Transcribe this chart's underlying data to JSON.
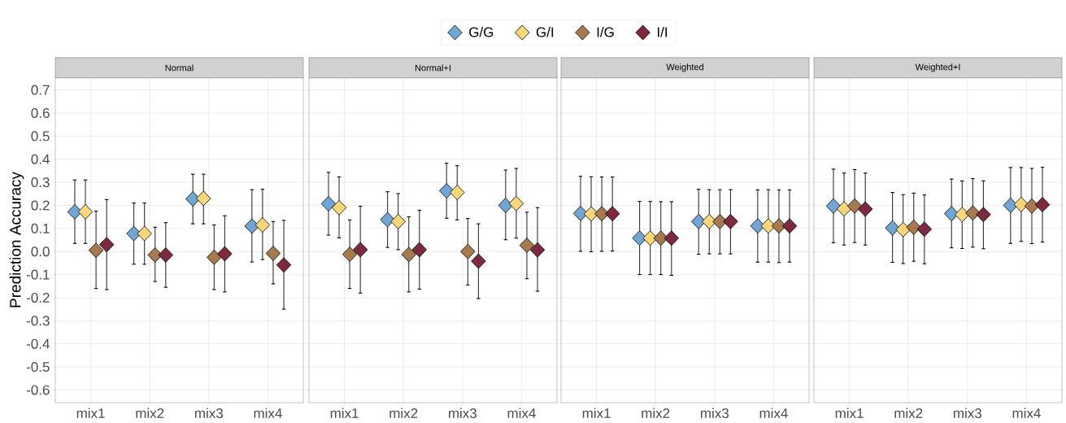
{
  "chart_data": [
    {
      "type": "scatter",
      "title": "Normal",
      "ylabel": "Prediction Accuracy",
      "categories": [
        "mix1",
        "mix2",
        "mix3",
        "mix4"
      ],
      "marker": "diamond",
      "grid": true,
      "legend": "top",
      "ylim": [
        -0.655,
        0.755
      ],
      "yticks": [
        {
          "value": -0.6,
          "label": "-0.6"
        },
        {
          "value": -0.5,
          "label": "-0.5"
        },
        {
          "value": -0.4,
          "label": "-0.4"
        },
        {
          "value": -0.3,
          "label": "-0.3"
        },
        {
          "value": -0.2,
          "label": "-0.2"
        },
        {
          "value": -0.1,
          "label": "-0.1"
        },
        {
          "value": 0,
          "label": "0.0"
        },
        {
          "value": 0.1,
          "label": "0.1"
        },
        {
          "value": 0.2,
          "label": "0.2"
        },
        {
          "value": 0.3,
          "label": "0.3"
        },
        {
          "value": 0.4,
          "label": "0.4"
        },
        {
          "value": 0.5,
          "label": "0.5"
        },
        {
          "value": 0.6,
          "label": "0.6"
        },
        {
          "value": 0.7,
          "label": "0.7"
        }
      ],
      "series": [
        {
          "name": "G/G",
          "color": "#6fa6d6",
          "values": [
            0.172,
            0.078,
            0.228,
            0.11
          ],
          "errors": [
            [
              0.035,
              0.31
            ],
            [
              -0.055,
              0.21
            ],
            [
              0.12,
              0.335
            ],
            [
              -0.045,
              0.268
            ]
          ]
        },
        {
          "name": "G/I",
          "color": "#fad67a",
          "values": [
            0.172,
            0.078,
            0.23,
            0.115
          ],
          "errors": [
            [
              0.035,
              0.31
            ],
            [
              -0.055,
              0.21
            ],
            [
              0.12,
              0.335
            ],
            [
              -0.035,
              0.27
            ]
          ]
        },
        {
          "name": "I/G",
          "color": "#a57a4e",
          "values": [
            0.005,
            -0.015,
            -0.025,
            -0.008
          ],
          "errors": [
            [
              -0.16,
              0.175
            ],
            [
              -0.13,
              0.105
            ],
            [
              -0.165,
              0.115
            ],
            [
              -0.14,
              0.13
            ]
          ]
        },
        {
          "name": "I/I",
          "color": "#7e2a3e",
          "values": [
            0.03,
            -0.015,
            -0.01,
            -0.058
          ],
          "errors": [
            [
              -0.165,
              0.225
            ],
            [
              -0.155,
              0.125
            ],
            [
              -0.175,
              0.155
            ],
            [
              -0.25,
              0.135
            ]
          ]
        }
      ]
    },
    {
      "type": "scatter",
      "title": "Normal+I",
      "categories": [
        "mix1",
        "mix2",
        "mix3",
        "mix4"
      ],
      "marker": "diamond",
      "grid": true,
      "tick_labels": "x",
      "ylim": [
        -0.655,
        0.755
      ],
      "yticks": [
        -0.6,
        -0.5,
        -0.4,
        -0.3,
        -0.2,
        -0.1,
        0,
        0.1,
        0.2,
        0.3,
        0.4,
        0.5,
        0.6,
        0.7
      ],
      "series": [
        {
          "color": "#6fa6d6",
          "values": [
            0.207,
            0.138,
            0.263,
            0.2
          ],
          "errors": [
            [
              0.071,
              0.343
            ],
            [
              0.018,
              0.259
            ],
            [
              0.144,
              0.383
            ],
            [
              0.051,
              0.353
            ]
          ]
        },
        {
          "color": "#fad67a",
          "values": [
            0.19,
            0.13,
            0.256,
            0.208
          ],
          "errors": [
            [
              0.059,
              0.323
            ],
            [
              0.008,
              0.251
            ],
            [
              0.137,
              0.372
            ],
            [
              0.058,
              0.36
            ]
          ]
        },
        {
          "color": "#a57a4e",
          "values": [
            -0.012,
            -0.013,
            0.0,
            0.027
          ],
          "errors": [
            [
              -0.16,
              0.137
            ],
            [
              -0.175,
              0.15
            ],
            [
              -0.145,
              0.143
            ],
            [
              -0.118,
              0.17
            ]
          ]
        },
        {
          "color": "#7e2a3e",
          "values": [
            0.008,
            0.008,
            -0.042,
            0.007
          ],
          "errors": [
            [
              -0.18,
              0.196
            ],
            [
              -0.163,
              0.179
            ],
            [
              -0.204,
              0.12
            ],
            [
              -0.172,
              0.19
            ]
          ]
        }
      ]
    },
    {
      "type": "scatter",
      "title": "Weighted",
      "categories": [
        "mix1",
        "mix2",
        "mix3",
        "mix4"
      ],
      "marker": "diamond",
      "grid": true,
      "tick_labels": "x",
      "ylim": [
        -0.655,
        0.755
      ],
      "yticks": [
        -0.6,
        -0.5,
        -0.4,
        -0.3,
        -0.2,
        -0.1,
        0,
        0.1,
        0.2,
        0.3,
        0.4,
        0.5,
        0.6,
        0.7
      ],
      "series": [
        {
          "color": "#6fa6d6",
          "values": [
            0.165,
            0.058,
            0.13,
            0.111
          ],
          "errors": [
            [
              0.001,
              0.326
            ],
            [
              -0.1,
              0.217
            ],
            [
              -0.012,
              0.27
            ],
            [
              -0.046,
              0.267
            ]
          ]
        },
        {
          "color": "#fad67a",
          "values": [
            0.163,
            0.058,
            0.13,
            0.111
          ],
          "errors": [
            [
              -0.001,
              0.324
            ],
            [
              -0.1,
              0.217
            ],
            [
              -0.01,
              0.268
            ],
            [
              -0.046,
              0.268
            ]
          ]
        },
        {
          "color": "#a57a4e",
          "values": [
            0.164,
            0.058,
            0.13,
            0.111
          ],
          "errors": [
            [
              0.001,
              0.323
            ],
            [
              -0.1,
              0.216
            ],
            [
              -0.01,
              0.268
            ],
            [
              -0.048,
              0.267
            ]
          ]
        },
        {
          "color": "#7e2a3e",
          "values": [
            0.164,
            0.058,
            0.13,
            0.111
          ],
          "errors": [
            [
              0.002,
              0.323
            ],
            [
              -0.103,
              0.216
            ],
            [
              -0.01,
              0.268
            ],
            [
              -0.046,
              0.267
            ]
          ]
        }
      ]
    },
    {
      "type": "scatter",
      "title": "Weighted+I",
      "categories": [
        "mix1",
        "mix2",
        "mix3",
        "mix4"
      ],
      "marker": "diamond",
      "grid": true,
      "tick_labels": "x",
      "ylim": [
        -0.655,
        0.755
      ],
      "yticks": [
        -0.6,
        -0.5,
        -0.4,
        -0.3,
        -0.2,
        -0.1,
        0,
        0.1,
        0.2,
        0.3,
        0.4,
        0.5,
        0.6,
        0.7
      ],
      "series": [
        {
          "color": "#6fa6d6",
          "values": [
            0.197,
            0.102,
            0.164,
            0.2
          ],
          "errors": [
            [
              0.038,
              0.357
            ],
            [
              -0.047,
              0.256
            ],
            [
              0.016,
              0.314
            ],
            [
              0.035,
              0.364
            ]
          ]
        },
        {
          "color": "#fad67a",
          "values": [
            0.185,
            0.095,
            0.16,
            0.204
          ],
          "errors": [
            [
              0.028,
              0.34
            ],
            [
              -0.052,
              0.246
            ],
            [
              0.013,
              0.306
            ],
            [
              0.044,
              0.364
            ]
          ]
        },
        {
          "color": "#a57a4e",
          "values": [
            0.197,
            0.105,
            0.167,
            0.197
          ],
          "errors": [
            [
              0.039,
              0.355
            ],
            [
              -0.042,
              0.253
            ],
            [
              0.019,
              0.316
            ],
            [
              0.034,
              0.36
            ]
          ]
        },
        {
          "color": "#7e2a3e",
          "values": [
            0.184,
            0.097,
            0.16,
            0.203
          ],
          "errors": [
            [
              0.028,
              0.34
            ],
            [
              -0.053,
              0.245
            ],
            [
              0.012,
              0.306
            ],
            [
              0.041,
              0.365
            ]
          ]
        }
      ]
    }
  ]
}
